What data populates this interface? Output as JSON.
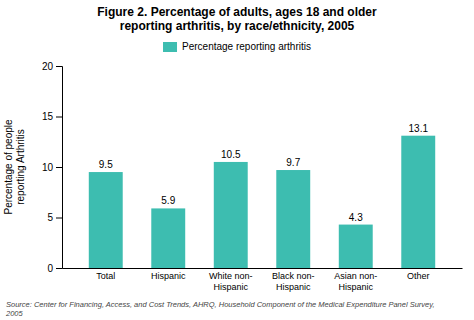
{
  "chart_data": {
    "type": "bar",
    "title": "Figure 2. Percentage of adults, ages 18 and older\nreporting arthritis, by race/ethnicity, 2005",
    "categories": [
      "Total",
      "Hispanic",
      "White non-\nHispanic",
      "Black non-\nHispanic",
      "Asian non-\nHispanic",
      "Other"
    ],
    "series": [
      {
        "name": "Percentage reporting arthritis",
        "color": "#3dbdb0",
        "values": [
          9.5,
          5.9,
          10.5,
          9.7,
          4.3,
          13.1
        ]
      }
    ],
    "y_label": "Percentage of people\nreporting Arthritis",
    "annotations": [
      "Source: Center for Financing, Access, and Cost Trends, AHRQ, Household Component of the Medical Expenditure Panel Survey,\n2005"
    ],
    "ylim": [
      0,
      20
    ],
    "yticks": [
      0,
      5,
      10,
      15,
      20
    ],
    "legend": "top",
    "grid": false,
    "data_labels": true
  }
}
